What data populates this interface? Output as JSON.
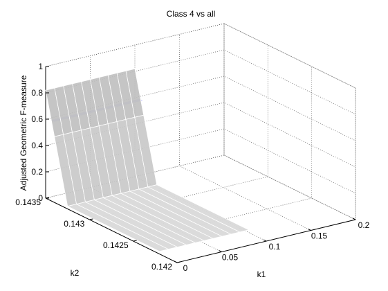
{
  "chart_data": {
    "type": "surface",
    "title": "Class 4 vs all",
    "xlabel": "k1",
    "ylabel": "k2",
    "zlabel": "Adjusted Geometric F-measure",
    "xlim": [
      0,
      0.2
    ],
    "ylim": [
      0.142,
      0.1435
    ],
    "zlim": [
      0,
      1
    ],
    "xticks": [
      0,
      0.05,
      0.1,
      0.15,
      0.2
    ],
    "xtick_labels": [
      "0",
      "0.05",
      "0.1",
      "0.15",
      "0.2"
    ],
    "yticks": [
      0.142,
      0.1425,
      0.143,
      0.1435
    ],
    "ytick_labels": [
      "0.142",
      "0.1425",
      "0.143",
      "0.1435"
    ],
    "zticks": [
      0,
      0.2,
      0.4,
      0.6,
      0.8,
      1
    ],
    "ztick_labels": [
      "0",
      "0.2",
      "0.4",
      "0.6",
      "0.8",
      "1"
    ],
    "grid": true,
    "series": [
      {
        "color": "#a9a9ff",
        "opacity": 0.6,
        "k1": [
          0,
          0.01,
          0.02,
          0.03,
          0.04,
          0.05,
          0.06,
          0.07,
          0.08,
          0.09,
          0.1
        ],
        "k2": [
          0.1434,
          0.14345
        ],
        "z": [
          [
            0.61,
            0.61,
            0.61,
            0.61,
            0.61,
            0.61,
            0.61,
            0.61,
            0.61,
            0.61,
            0.61
          ],
          [
            0.61,
            0.61,
            0.61,
            0.61,
            0.61,
            0.61,
            0.61,
            0.61,
            0.61,
            0.61,
            0.61
          ]
        ]
      },
      {
        "color": "#bfbfbf",
        "opacity": 0.9,
        "k1": [
          0,
          0.01,
          0.02,
          0.03,
          0.04,
          0.05,
          0.06,
          0.07,
          0.08,
          0.09,
          0.1
        ],
        "k2": [
          0.1435,
          0.1434
        ],
        "z": [
          [
            0.82,
            0.82,
            0.82,
            0.82,
            0.82,
            0.82,
            0.82,
            0.82,
            0.82,
            0.82,
            0.82
          ],
          [
            0.5,
            0.5,
            0.5,
            0.5,
            0.5,
            0.5,
            0.5,
            0.5,
            0.5,
            0.5,
            0.5
          ]
        ]
      },
      {
        "color": "#c8c8c8",
        "opacity": 0.9,
        "k1": [
          0,
          0.01,
          0.02,
          0.03,
          0.04,
          0.05,
          0.06,
          0.07,
          0.08,
          0.09,
          0.1
        ],
        "k2": [
          0.1434,
          0.14325
        ],
        "z": [
          [
            0.5,
            0.5,
            0.5,
            0.5,
            0.5,
            0.5,
            0.5,
            0.5,
            0.5,
            0.5,
            0.5
          ],
          [
            0.02,
            0.02,
            0.02,
            0.02,
            0.02,
            0.02,
            0.02,
            0.02,
            0.02,
            0.02,
            0.02
          ]
        ]
      },
      {
        "color": "#d9d9d9",
        "opacity": 0.95,
        "k1": [
          0,
          0.01,
          0.02,
          0.03,
          0.04,
          0.05,
          0.06,
          0.07,
          0.08,
          0.09,
          0.1
        ],
        "k2": [
          0.14325,
          0.1422
        ],
        "z": [
          [
            0.02,
            0.02,
            0.02,
            0.02,
            0.02,
            0.02,
            0.02,
            0.02,
            0.02,
            0.02,
            0.02
          ],
          [
            0.02,
            0.02,
            0.02,
            0.02,
            0.02,
            0.02,
            0.02,
            0.02,
            0.02,
            0.02,
            0.02
          ]
        ]
      }
    ]
  }
}
